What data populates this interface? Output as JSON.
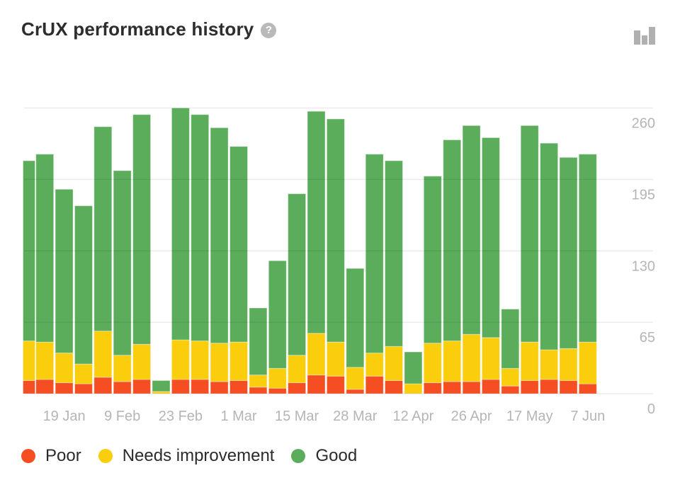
{
  "header": {
    "title": "CrUX performance history",
    "help_icon_glyph": "?"
  },
  "icons": {
    "help": "question-mark-circle",
    "corner": "bar-chart"
  },
  "colors": {
    "title_text": "#2d2d2d",
    "axis_text": "#b5b5b5",
    "grid_line": "rgba(0,0,0,0.08)",
    "segment_edge": "rgba(255,255,255,0.4)",
    "help_icon_bg": "#b9b9b9",
    "corner_icon": "#b0b0b0",
    "legend_text": "#2b2b2b"
  },
  "chart_data": {
    "type": "bar",
    "stacked": true,
    "title": "CrUX performance history",
    "bar_count": 30,
    "grid": true,
    "legend_position": "bottom",
    "ylim": [
      0,
      273
    ],
    "y_ticks": [
      0,
      65,
      130,
      195,
      260
    ],
    "x_tick_labels": [
      "19 Jan",
      "9 Feb",
      "23 Feb",
      "1 Mar",
      "15 Mar",
      "28 Mar",
      "12 Apr",
      "26 Apr",
      "17 May",
      "7 Jun"
    ],
    "x_tick_bar_indices": [
      2,
      5,
      8,
      11,
      14,
      17,
      20,
      23,
      26,
      29
    ],
    "series": [
      {
        "name": "Poor",
        "color": "#f44e22",
        "values": [
          12,
          13,
          10,
          9,
          15,
          11,
          13,
          0,
          13,
          13,
          11,
          12,
          6,
          5,
          10,
          17,
          16,
          4,
          16,
          12,
          0,
          10,
          11,
          11,
          13,
          7,
          12,
          13,
          12,
          9
        ]
      },
      {
        "name": "Needs improvement",
        "color": "#facd0d",
        "values": [
          36,
          34,
          27,
          18,
          42,
          24,
          32,
          2,
          36,
          35,
          35,
          35,
          11,
          18,
          25,
          38,
          31,
          20,
          21,
          31,
          9,
          36,
          37,
          43,
          38,
          16,
          35,
          27,
          29,
          38
        ]
      },
      {
        "name": "Good",
        "color": "#5bad5c",
        "values": [
          164,
          171,
          149,
          144,
          186,
          168,
          209,
          10,
          211,
          206,
          196,
          178,
          61,
          98,
          147,
          202,
          203,
          90,
          181,
          169,
          29,
          152,
          183,
          190,
          182,
          54,
          197,
          188,
          174,
          171
        ]
      }
    ]
  }
}
